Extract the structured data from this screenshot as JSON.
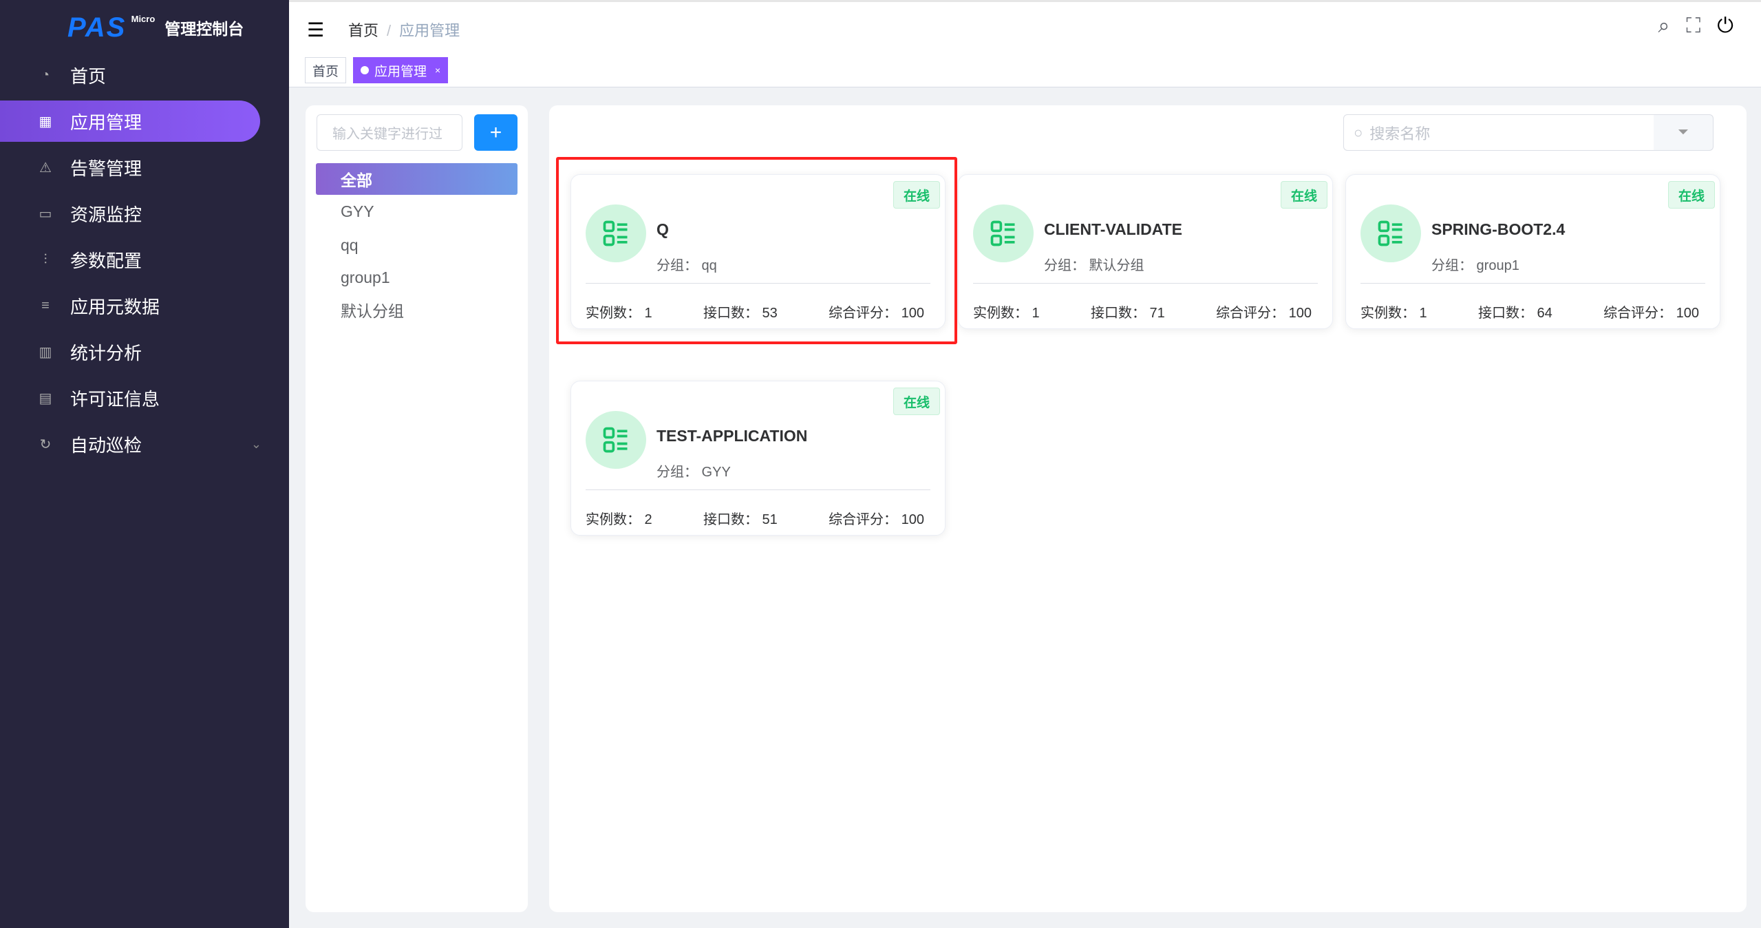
{
  "sidebar": {
    "logo": "PAS",
    "logo_sup": "Micro",
    "title": "管理控制台",
    "items": [
      {
        "label": "首页",
        "icon": "dashboard-icon"
      },
      {
        "label": "应用管理",
        "icon": "apps-icon",
        "active": true
      },
      {
        "label": "告警管理",
        "icon": "warning-icon"
      },
      {
        "label": "资源监控",
        "icon": "monitor-icon"
      },
      {
        "label": "参数配置",
        "icon": "sliders-icon"
      },
      {
        "label": "应用元数据",
        "icon": "database-icon"
      },
      {
        "label": "统计分析",
        "icon": "bar-chart-icon"
      },
      {
        "label": "许可证信息",
        "icon": "license-icon"
      },
      {
        "label": "自动巡检",
        "icon": "refresh-icon"
      }
    ]
  },
  "header": {
    "breadcrumb": [
      "首页",
      "应用管理"
    ]
  },
  "tags": [
    {
      "label": "首页"
    },
    {
      "label": "应用管理",
      "close": "×"
    }
  ],
  "groups": {
    "placeholder": "输入关键字进行过",
    "add": "+",
    "items": [
      "全部",
      "GYY",
      "qq",
      "group1",
      "默认分组"
    ]
  },
  "search": {
    "placeholder": "搜索名称"
  },
  "cards": [
    {
      "name": "Q",
      "group": "分组：  qq",
      "status": "在线",
      "instances": "实例数：  1",
      "apis": "接口数：  53",
      "score": "综合评分：  100"
    },
    {
      "name": "CLIENT-VALIDATE",
      "group": "分组：  默认分组",
      "status": "在线",
      "instances": "实例数：  1",
      "apis": "接口数：  71",
      "score": "综合评分：  100"
    },
    {
      "name": "SPRING-BOOT2.4",
      "group": "分组：  group1",
      "status": "在线",
      "instances": "实例数：  1",
      "apis": "接口数：  64",
      "score": "综合评分：  100"
    },
    {
      "name": "TEST-APPLICATION",
      "group": "分组：  GYY",
      "status": "在线",
      "instances": "实例数：  2",
      "apis": "接口数：  51",
      "score": "综合评分：  100"
    }
  ],
  "colors": {
    "accent": "#8c52ff",
    "online": "#19be6b",
    "highlight": "#ff2020"
  }
}
